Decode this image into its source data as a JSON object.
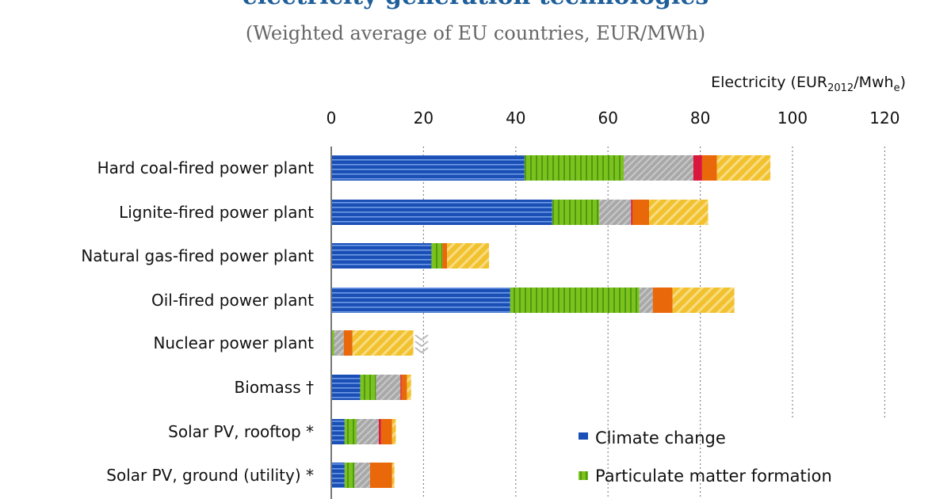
{
  "chart_data": {
    "type": "bar",
    "orientation": "horizontal",
    "stacked": true,
    "title": "electricity generation technologies",
    "subtitle": "(Weighted average of EU countries, EUR/MWh)",
    "xlabel": "Electricity (EUR",
    "xlabel_sub": "2012",
    "xlabel_mid": "/Mwh",
    "xlabel_sub2": "e",
    "xlabel_end": ")",
    "xlim": [
      0,
      120
    ],
    "xticks": [
      "0",
      "20",
      "40",
      "60",
      "80",
      "100",
      "120"
    ],
    "grid": true,
    "categories": [
      "Hard coal-fired power plant",
      "Lignite-fired power plant",
      "Natural gas-fired power plant",
      "Oil-fired power plant",
      "Nuclear power plant",
      "Biomass †",
      "Solar PV, rooftop *",
      "Solar PV, ground (utility) *"
    ],
    "series": [
      {
        "name": "Climate change",
        "color": "#1a4fb5",
        "values": [
          41.9,
          47.9,
          21.7,
          38.8,
          0,
          6.3,
          2.9,
          2.9
        ]
      },
      {
        "name": "Particulate matter formation",
        "color": "#7cc21e",
        "values": [
          21.5,
          10.2,
          2.4,
          28.0,
          0.6,
          3.4,
          2.6,
          2.2
        ]
      },
      {
        "color": "#a8a8a8",
        "values": [
          15.1,
          6.9,
          0,
          2.9,
          2.1,
          5.3,
          4.8,
          3.3
        ]
      },
      {
        "color": "#d8183c",
        "values": [
          1.9,
          0.3,
          0,
          0,
          0,
          0.2,
          0.5,
          0
        ]
      },
      {
        "color": "#e8680a",
        "values": [
          3.2,
          3.6,
          1.0,
          4.3,
          1.9,
          1.2,
          2.4,
          4.8
        ]
      },
      {
        "color": "#f2c12e",
        "values": [
          11.6,
          12.8,
          9.1,
          13.4,
          13.2,
          0.9,
          0.8,
          0.5
        ]
      }
    ],
    "axis_break_category": "Nuclear power plant",
    "legend": "bottom-right"
  }
}
